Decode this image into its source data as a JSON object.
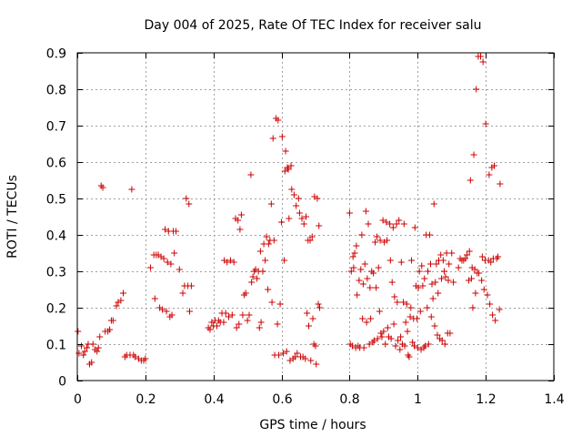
{
  "chart_data": {
    "type": "scatter",
    "title": "Day 004 of 2025, Rate Of TEC Index for receiver salu",
    "xlabel": "GPS time / hours",
    "ylabel": "ROTI / TECUs",
    "xlim": [
      0,
      1.4
    ],
    "ylim": [
      0,
      0.9
    ],
    "xticks": [
      0,
      0.2,
      0.4,
      0.6,
      0.8,
      1,
      1.2,
      1.4
    ],
    "xtick_labels": [
      "0",
      "0.2",
      "0.4",
      "0.6",
      "0.8",
      "1",
      "1.2",
      "1.4"
    ],
    "yticks": [
      0,
      0.1,
      0.2,
      0.3,
      0.4,
      0.5,
      0.6,
      0.7,
      0.8,
      0.9
    ],
    "ytick_labels": [
      "0",
      "0.1",
      "0.2",
      "0.3",
      "0.4",
      "0.5",
      "0.6",
      "0.7",
      "0.8",
      "0.9"
    ],
    "grid": true,
    "marker": "+",
    "color": "#cc0000",
    "points": [
      [
        0.002,
        0.135
      ],
      [
        0.005,
        0.075
      ],
      [
        0.012,
        0.095
      ],
      [
        0.018,
        0.07
      ],
      [
        0.022,
        0.08
      ],
      [
        0.028,
        0.09
      ],
      [
        0.032,
        0.1
      ],
      [
        0.036,
        0.045
      ],
      [
        0.042,
        0.05
      ],
      [
        0.046,
        0.1
      ],
      [
        0.052,
        0.085
      ],
      [
        0.058,
        0.08
      ],
      [
        0.062,
        0.09
      ],
      [
        0.066,
        0.12
      ],
      [
        0.07,
        0.535
      ],
      [
        0.075,
        0.53
      ],
      [
        0.082,
        0.135
      ],
      [
        0.09,
        0.135
      ],
      [
        0.095,
        0.14
      ],
      [
        0.1,
        0.165
      ],
      [
        0.105,
        0.165
      ],
      [
        0.115,
        0.205
      ],
      [
        0.12,
        0.215
      ],
      [
        0.128,
        0.22
      ],
      [
        0.135,
        0.24
      ],
      [
        0.14,
        0.065
      ],
      [
        0.145,
        0.07
      ],
      [
        0.155,
        0.07
      ],
      [
        0.16,
        0.525
      ],
      [
        0.165,
        0.07
      ],
      [
        0.17,
        0.065
      ],
      [
        0.18,
        0.06
      ],
      [
        0.188,
        0.055
      ],
      [
        0.195,
        0.055
      ],
      [
        0.2,
        0.06
      ],
      [
        0.215,
        0.31
      ],
      [
        0.225,
        0.345
      ],
      [
        0.228,
        0.225
      ],
      [
        0.232,
        0.345
      ],
      [
        0.238,
        0.345
      ],
      [
        0.242,
        0.2
      ],
      [
        0.246,
        0.34
      ],
      [
        0.25,
        0.195
      ],
      [
        0.254,
        0.335
      ],
      [
        0.258,
        0.415
      ],
      [
        0.262,
        0.19
      ],
      [
        0.265,
        0.325
      ],
      [
        0.268,
        0.41
      ],
      [
        0.272,
        0.175
      ],
      [
        0.275,
        0.32
      ],
      [
        0.278,
        0.18
      ],
      [
        0.282,
        0.41
      ],
      [
        0.285,
        0.35
      ],
      [
        0.29,
        0.41
      ],
      [
        0.3,
        0.305
      ],
      [
        0.31,
        0.24
      ],
      [
        0.315,
        0.26
      ],
      [
        0.32,
        0.5
      ],
      [
        0.325,
        0.26
      ],
      [
        0.328,
        0.485
      ],
      [
        0.33,
        0.19
      ],
      [
        0.335,
        0.26
      ],
      [
        0.385,
        0.145
      ],
      [
        0.39,
        0.14
      ],
      [
        0.395,
        0.16
      ],
      [
        0.4,
        0.15
      ],
      [
        0.405,
        0.165
      ],
      [
        0.41,
        0.15
      ],
      [
        0.415,
        0.165
      ],
      [
        0.42,
        0.16
      ],
      [
        0.425,
        0.185
      ],
      [
        0.43,
        0.16
      ],
      [
        0.432,
        0.33
      ],
      [
        0.436,
        0.185
      ],
      [
        0.44,
        0.325
      ],
      [
        0.445,
        0.175
      ],
      [
        0.45,
        0.33
      ],
      [
        0.455,
        0.18
      ],
      [
        0.46,
        0.325
      ],
      [
        0.465,
        0.445
      ],
      [
        0.468,
        0.145
      ],
      [
        0.472,
        0.44
      ],
      [
        0.475,
        0.155
      ],
      [
        0.478,
        0.415
      ],
      [
        0.482,
        0.455
      ],
      [
        0.486,
        0.18
      ],
      [
        0.49,
        0.235
      ],
      [
        0.495,
        0.24
      ],
      [
        0.5,
        0.165
      ],
      [
        0.505,
        0.18
      ],
      [
        0.51,
        0.565
      ],
      [
        0.512,
        0.27
      ],
      [
        0.516,
        0.285
      ],
      [
        0.52,
        0.3
      ],
      [
        0.524,
        0.305
      ],
      [
        0.528,
        0.28
      ],
      [
        0.532,
        0.3
      ],
      [
        0.535,
        0.145
      ],
      [
        0.538,
        0.355
      ],
      [
        0.54,
        0.16
      ],
      [
        0.545,
        0.3
      ],
      [
        0.548,
        0.375
      ],
      [
        0.552,
        0.33
      ],
      [
        0.556,
        0.395
      ],
      [
        0.56,
        0.25
      ],
      [
        0.562,
        0.375
      ],
      [
        0.566,
        0.385
      ],
      [
        0.57,
        0.485
      ],
      [
        0.572,
        0.215
      ],
      [
        0.575,
        0.665
      ],
      [
        0.578,
        0.385
      ],
      [
        0.58,
        0.07
      ],
      [
        0.584,
        0.72
      ],
      [
        0.588,
        0.155
      ],
      [
        0.59,
        0.715
      ],
      [
        0.592,
        0.07
      ],
      [
        0.596,
        0.21
      ],
      [
        0.6,
        0.435
      ],
      [
        0.602,
        0.67
      ],
      [
        0.605,
        0.075
      ],
      [
        0.608,
        0.33
      ],
      [
        0.61,
        0.575
      ],
      [
        0.612,
        0.63
      ],
      [
        0.615,
        0.08
      ],
      [
        0.617,
        0.585
      ],
      [
        0.62,
        0.58
      ],
      [
        0.622,
        0.445
      ],
      [
        0.625,
        0.055
      ],
      [
        0.628,
        0.59
      ],
      [
        0.63,
        0.525
      ],
      [
        0.634,
        0.06
      ],
      [
        0.637,
        0.51
      ],
      [
        0.64,
        0.065
      ],
      [
        0.643,
        0.48
      ],
      [
        0.646,
        0.075
      ],
      [
        0.65,
        0.5
      ],
      [
        0.653,
        0.46
      ],
      [
        0.656,
        0.065
      ],
      [
        0.66,
        0.445
      ],
      [
        0.663,
        0.065
      ],
      [
        0.666,
        0.43
      ],
      [
        0.67,
        0.06
      ],
      [
        0.672,
        0.45
      ],
      [
        0.675,
        0.185
      ],
      [
        0.678,
        0.385
      ],
      [
        0.68,
        0.15
      ],
      [
        0.684,
        0.385
      ],
      [
        0.686,
        0.055
      ],
      [
        0.69,
        0.395
      ],
      [
        0.692,
        0.17
      ],
      [
        0.695,
        0.1
      ],
      [
        0.697,
        0.505
      ],
      [
        0.7,
        0.095
      ],
      [
        0.702,
        0.045
      ],
      [
        0.705,
        0.5
      ],
      [
        0.708,
        0.21
      ],
      [
        0.71,
        0.425
      ],
      [
        0.712,
        0.2
      ],
      [
        0.8,
        0.46
      ],
      [
        0.802,
        0.1
      ],
      [
        0.805,
        0.3
      ],
      [
        0.808,
        0.095
      ],
      [
        0.81,
        0.34
      ],
      [
        0.812,
        0.31
      ],
      [
        0.815,
        0.35
      ],
      [
        0.818,
        0.09
      ],
      [
        0.82,
        0.37
      ],
      [
        0.822,
        0.235
      ],
      [
        0.825,
        0.095
      ],
      [
        0.828,
        0.275
      ],
      [
        0.83,
        0.09
      ],
      [
        0.833,
        0.305
      ],
      [
        0.836,
        0.4
      ],
      [
        0.838,
        0.17
      ],
      [
        0.84,
        0.265
      ],
      [
        0.842,
        0.09
      ],
      [
        0.845,
        0.32
      ],
      [
        0.848,
        0.465
      ],
      [
        0.85,
        0.16
      ],
      [
        0.852,
        0.28
      ],
      [
        0.855,
        0.43
      ],
      [
        0.858,
        0.1
      ],
      [
        0.86,
        0.255
      ],
      [
        0.862,
        0.17
      ],
      [
        0.865,
        0.3
      ],
      [
        0.868,
        0.105
      ],
      [
        0.87,
        0.295
      ],
      [
        0.872,
        0.11
      ],
      [
        0.875,
        0.38
      ],
      [
        0.878,
        0.255
      ],
      [
        0.88,
        0.395
      ],
      [
        0.882,
        0.115
      ],
      [
        0.885,
        0.31
      ],
      [
        0.888,
        0.19
      ],
      [
        0.89,
        0.385
      ],
      [
        0.892,
        0.13
      ],
      [
        0.895,
        0.12
      ],
      [
        0.898,
        0.44
      ],
      [
        0.9,
        0.135
      ],
      [
        0.902,
        0.38
      ],
      [
        0.905,
        0.1
      ],
      [
        0.908,
        0.435
      ],
      [
        0.91,
        0.385
      ],
      [
        0.912,
        0.145
      ],
      [
        0.915,
        0.12
      ],
      [
        0.918,
        0.43
      ],
      [
        0.92,
        0.33
      ],
      [
        0.922,
        0.115
      ],
      [
        0.925,
        0.27
      ],
      [
        0.928,
        0.42
      ],
      [
        0.93,
        0.155
      ],
      [
        0.932,
        0.23
      ],
      [
        0.935,
        0.095
      ],
      [
        0.938,
        0.43
      ],
      [
        0.94,
        0.215
      ],
      [
        0.942,
        0.11
      ],
      [
        0.945,
        0.44
      ],
      [
        0.948,
        0.085
      ],
      [
        0.95,
        0.12
      ],
      [
        0.952,
        0.325
      ],
      [
        0.955,
        0.1
      ],
      [
        0.958,
        0.215
      ],
      [
        0.96,
        0.43
      ],
      [
        0.962,
        0.095
      ],
      [
        0.965,
        0.16
      ],
      [
        0.968,
        0.21
      ],
      [
        0.97,
        0.135
      ],
      [
        0.972,
        0.07
      ],
      [
        0.975,
        0.065
      ],
      [
        0.978,
        0.175
      ],
      [
        0.98,
        0.2
      ],
      [
        0.982,
        0.33
      ],
      [
        0.985,
        0.105
      ],
      [
        0.988,
        0.17
      ],
      [
        0.99,
        0.095
      ],
      [
        0.992,
        0.42
      ],
      [
        0.995,
        0.26
      ],
      [
        0.998,
        0.17
      ],
      [
        1.0,
        0.09
      ],
      [
        1.002,
        0.255
      ],
      [
        1.005,
        0.3
      ],
      [
        1.008,
        0.19
      ],
      [
        1.01,
        0.085
      ],
      [
        1.012,
        0.315
      ],
      [
        1.015,
        0.26
      ],
      [
        1.018,
        0.09
      ],
      [
        1.02,
        0.28
      ],
      [
        1.022,
        0.095
      ],
      [
        1.025,
        0.4
      ],
      [
        1.028,
        0.2
      ],
      [
        1.03,
        0.3
      ],
      [
        1.032,
        0.1
      ],
      [
        1.035,
        0.4
      ],
      [
        1.038,
        0.32
      ],
      [
        1.04,
        0.175
      ],
      [
        1.042,
        0.265
      ],
      [
        1.045,
        0.225
      ],
      [
        1.048,
        0.485
      ],
      [
        1.05,
        0.15
      ],
      [
        1.052,
        0.27
      ],
      [
        1.055,
        0.32
      ],
      [
        1.058,
        0.125
      ],
      [
        1.06,
        0.24
      ],
      [
        1.062,
        0.33
      ],
      [
        1.065,
        0.115
      ],
      [
        1.068,
        0.345
      ],
      [
        1.07,
        0.28
      ],
      [
        1.072,
        0.11
      ],
      [
        1.075,
        0.33
      ],
      [
        1.078,
        0.3
      ],
      [
        1.08,
        0.1
      ],
      [
        1.082,
        0.285
      ],
      [
        1.085,
        0.35
      ],
      [
        1.088,
        0.13
      ],
      [
        1.09,
        0.275
      ],
      [
        1.092,
        0.32
      ],
      [
        1.095,
        0.13
      ],
      [
        1.1,
        0.35
      ],
      [
        1.105,
        0.27
      ],
      [
        1.12,
        0.31
      ],
      [
        1.125,
        0.335
      ],
      [
        1.13,
        0.33
      ],
      [
        1.135,
        0.33
      ],
      [
        1.14,
        0.335
      ],
      [
        1.145,
        0.345
      ],
      [
        1.15,
        0.275
      ],
      [
        1.152,
        0.355
      ],
      [
        1.155,
        0.55
      ],
      [
        1.158,
        0.28
      ],
      [
        1.16,
        0.31
      ],
      [
        1.162,
        0.2
      ],
      [
        1.165,
        0.62
      ],
      [
        1.168,
        0.305
      ],
      [
        1.17,
        0.24
      ],
      [
        1.172,
        0.8
      ],
      [
        1.175,
        0.295
      ],
      [
        1.178,
        0.89
      ],
      [
        1.18,
        0.295
      ],
      [
        1.185,
        0.89
      ],
      [
        1.188,
        0.275
      ],
      [
        1.19,
        0.34
      ],
      [
        1.192,
        0.875
      ],
      [
        1.195,
        0.25
      ],
      [
        1.198,
        0.33
      ],
      [
        1.2,
        0.705
      ],
      [
        1.205,
        0.235
      ],
      [
        1.208,
        0.33
      ],
      [
        1.21,
        0.565
      ],
      [
        1.212,
        0.21
      ],
      [
        1.215,
        0.325
      ],
      [
        1.218,
        0.585
      ],
      [
        1.22,
        0.18
      ],
      [
        1.222,
        0.335
      ],
      [
        1.225,
        0.59
      ],
      [
        1.228,
        0.165
      ],
      [
        1.232,
        0.335
      ],
      [
        1.236,
        0.34
      ],
      [
        1.24,
        0.195
      ],
      [
        1.242,
        0.54
      ]
    ]
  }
}
